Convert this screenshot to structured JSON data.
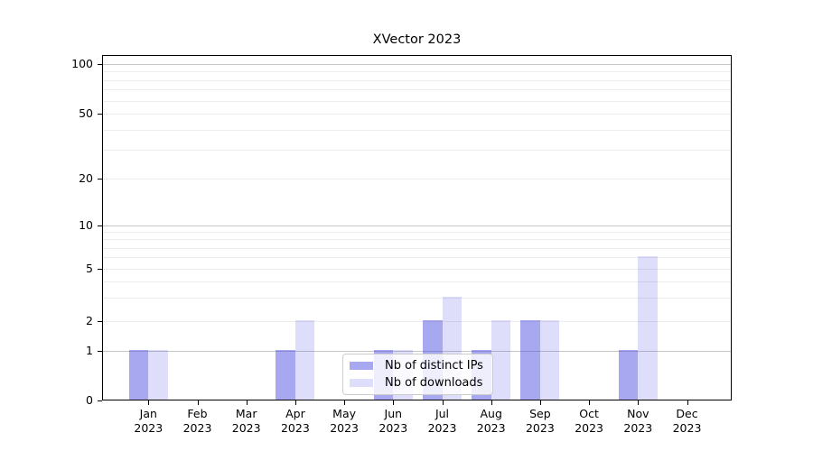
{
  "window": {
    "background": "#ffffff"
  },
  "chart_data": {
    "type": "bar",
    "title": "XVector 2023",
    "categories": [
      "Jan 2023",
      "Feb 2023",
      "Mar 2023",
      "Apr 2023",
      "May 2023",
      "Jun 2023",
      "Jul 2023",
      "Aug 2023",
      "Sep 2023",
      "Oct 2023",
      "Nov 2023",
      "Dec 2023"
    ],
    "x_tick_labels": [
      [
        "Jan",
        "2023"
      ],
      [
        "Feb",
        "2023"
      ],
      [
        "Mar",
        "2023"
      ],
      [
        "Apr",
        "2023"
      ],
      [
        "May",
        "2023"
      ],
      [
        "Jun",
        "2023"
      ],
      [
        "Jul",
        "2023"
      ],
      [
        "Aug",
        "2023"
      ],
      [
        "Sep",
        "2023"
      ],
      [
        "Oct",
        "2023"
      ],
      [
        "Nov",
        "2023"
      ],
      [
        "Dec",
        "2023"
      ]
    ],
    "series": [
      {
        "name": "Nb of distinct IPs",
        "color": "#4646E1",
        "alpha": 0.47,
        "values": [
          1,
          0,
          0,
          1,
          0,
          1,
          2,
          1,
          2,
          0,
          1,
          0
        ]
      },
      {
        "name": "Nb of downloads",
        "color": "#4646E1",
        "alpha": 0.18,
        "values": [
          1,
          0,
          0,
          2,
          0,
          1,
          3,
          2,
          2,
          0,
          6,
          0
        ]
      }
    ],
    "xlabel": "",
    "ylabel": "",
    "y_axis": {
      "scale": "symlog",
      "tick_labels": [
        "0",
        "1",
        "2",
        "5",
        "10",
        "20",
        "50",
        "100"
      ],
      "major_ticks": [
        0,
        1,
        2,
        5,
        10,
        20,
        50,
        100
      ],
      "strong_gridlines": [
        1,
        10,
        100
      ],
      "minor_gridlines": [
        3,
        4,
        6,
        7,
        8,
        9,
        30,
        40,
        60,
        70,
        80,
        90
      ],
      "ylim": [
        0,
        115
      ]
    },
    "grid": "horizontal",
    "legend": {
      "position": "lower center",
      "entries": [
        "Nb of distinct IPs",
        "Nb of downloads"
      ]
    },
    "colors": {
      "grid_strong": "#c6c6c6",
      "grid_weak": "#ececec",
      "spine": "#000000",
      "text": "#000000"
    }
  }
}
